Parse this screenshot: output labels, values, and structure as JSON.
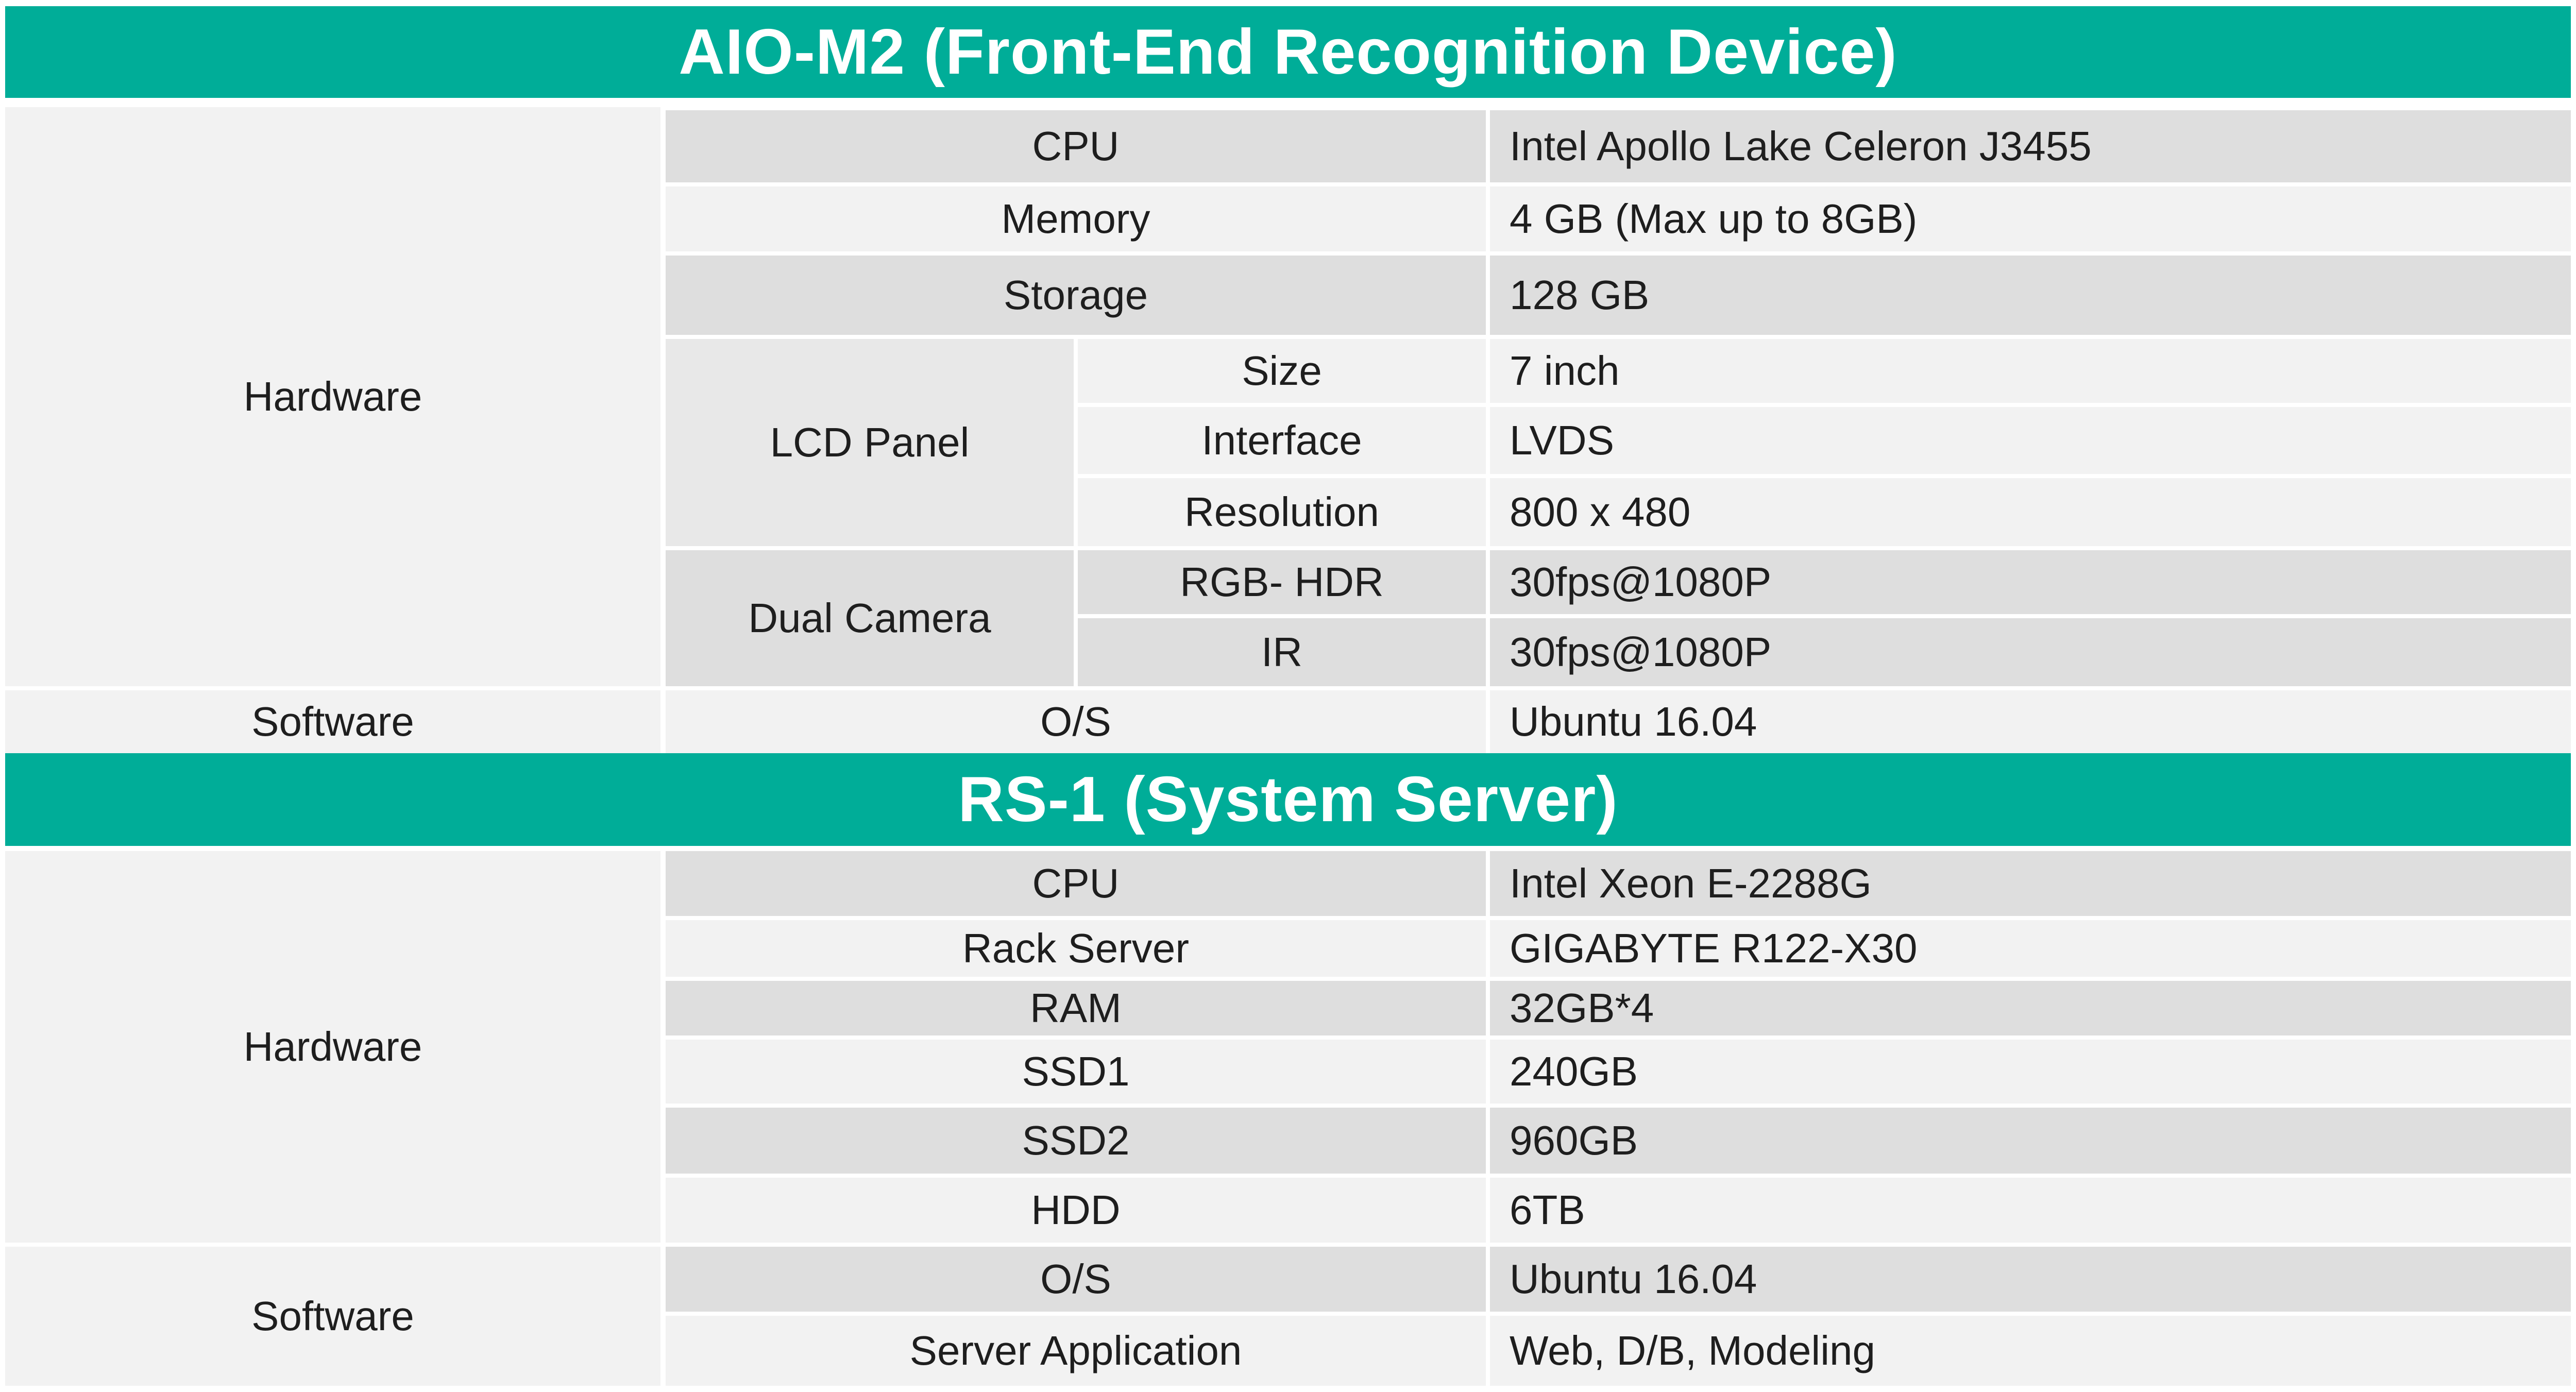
{
  "aio": {
    "title": "AIO-M2 (Front-End Recognition Device)",
    "hardware_label": "Hardware",
    "software_label": "Software",
    "rows": [
      {
        "name": "CPU",
        "value": "Intel Apollo Lake Celeron J3455"
      },
      {
        "name": "Memory",
        "value": "4 GB (Max up to 8GB)"
      },
      {
        "name": "Storage",
        "value": "128 GB"
      }
    ],
    "lcd": {
      "label": "LCD Panel",
      "rows": [
        {
          "name": "Size",
          "value": "7 inch"
        },
        {
          "name": "Interface",
          "value": "LVDS"
        },
        {
          "name": "Resolution",
          "value": "800 x 480"
        }
      ]
    },
    "camera": {
      "label": "Dual Camera",
      "rows": [
        {
          "name": "RGB- HDR",
          "value": "30fps@1080P"
        },
        {
          "name": "IR",
          "value": "30fps@1080P"
        }
      ]
    },
    "software_rows": [
      {
        "name": "O/S",
        "value": "Ubuntu 16.04"
      }
    ]
  },
  "rs": {
    "title": "RS-1 (System Server)",
    "hardware_label": "Hardware",
    "software_label": "Software",
    "rows": [
      {
        "name": "CPU",
        "value": "Intel Xeon E-2288G"
      },
      {
        "name": "Rack Server",
        "value": "GIGABYTE R122-X30"
      },
      {
        "name": "RAM",
        "value": "32GB*4"
      },
      {
        "name": "SSD1",
        "value": "240GB"
      },
      {
        "name": "SSD2",
        "value": "960GB"
      },
      {
        "name": "HDD",
        "value": "6TB"
      }
    ],
    "software_rows": [
      {
        "name": "O/S",
        "value": "Ubuntu 16.04"
      },
      {
        "name": "Server Application",
        "value": "Web, D/B, Modeling"
      }
    ]
  }
}
